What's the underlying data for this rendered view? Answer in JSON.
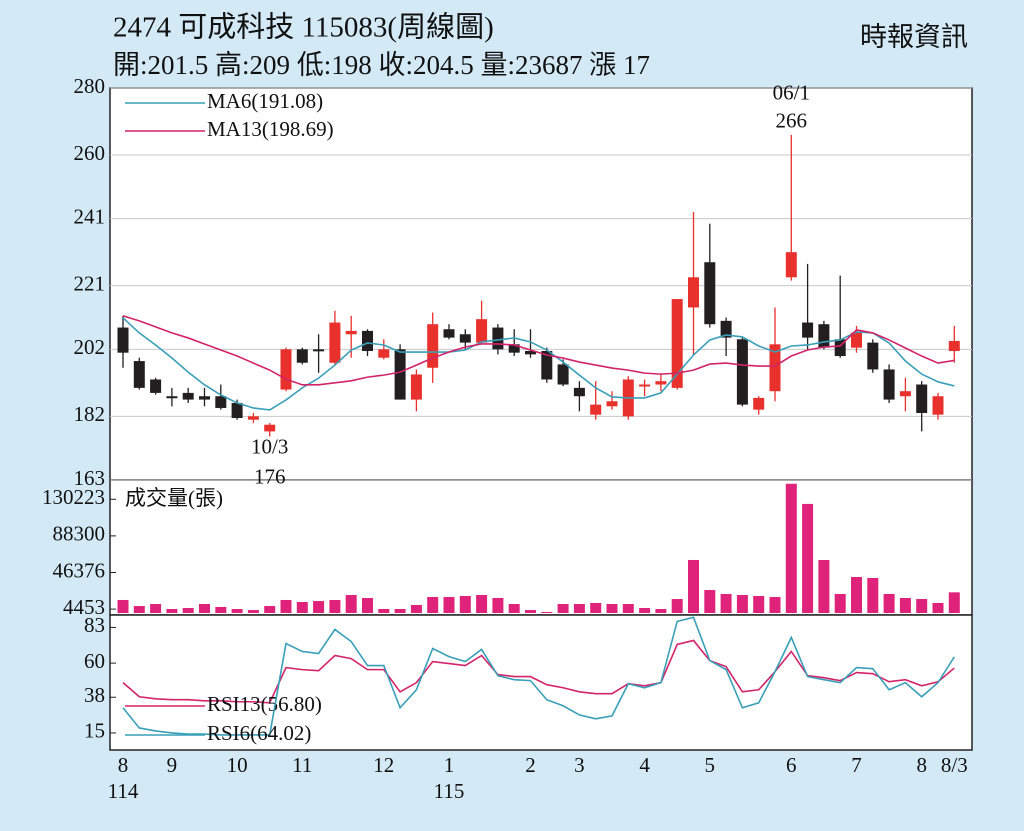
{
  "chart_data": [
    {
      "type": "candlestick",
      "title": "2474  可成科技 115083(周線圖)",
      "subtitle": "開:201.5 高:209 低:198 收:204.5 量:23687 漲 17",
      "source": "時報資訊",
      "categories": [
        "8",
        null,
        null,
        "9",
        null,
        null,
        null,
        "10",
        null,
        null,
        null,
        "11",
        null,
        null,
        null,
        null,
        "12",
        null,
        null,
        null,
        "1",
        null,
        null,
        null,
        null,
        "2",
        null,
        null,
        "3",
        null,
        null,
        null,
        "4",
        null,
        null,
        null,
        "5",
        null,
        null,
        null,
        null,
        "6",
        null,
        null,
        null,
        "7",
        null,
        null,
        null,
        "8",
        null,
        "8/3"
      ],
      "year_labels": [
        {
          "category": 0,
          "label": "114"
        },
        {
          "category": 20,
          "label": "115"
        }
      ],
      "open": [
        208.5,
        198.5,
        193,
        188,
        189,
        188,
        188,
        186,
        181,
        177.5,
        190,
        202,
        202,
        198,
        206.5,
        207.5,
        199.5,
        202,
        187,
        196.5,
        208,
        206.5,
        204,
        208.5,
        203.5,
        201.5,
        201.5,
        197.5,
        190.5,
        182.5,
        185,
        182,
        191,
        191.5,
        190.5,
        214.5,
        228,
        210.5,
        205,
        184,
        189.5,
        223.5,
        210,
        209.5,
        205,
        202.5,
        204,
        196,
        188,
        191.5,
        182.5,
        201.5
      ],
      "high": [
        212,
        199.5,
        193.5,
        190.5,
        190.5,
        190.5,
        191.5,
        187,
        183,
        180,
        202.5,
        202.5,
        206.5,
        213.5,
        212,
        208,
        205,
        203.5,
        196,
        213,
        209.5,
        208,
        216.5,
        209.5,
        208,
        208,
        202.5,
        199,
        192.5,
        192.5,
        189.5,
        194,
        193,
        194.5,
        217,
        243,
        239.5,
        211.5,
        205.5,
        188,
        214.5,
        266,
        227.5,
        210.5,
        224,
        209,
        205,
        197.5,
        193.5,
        192.5,
        189,
        209
      ],
      "low": [
        196.5,
        190,
        188.5,
        185,
        186,
        185,
        184,
        181,
        180,
        176,
        189.5,
        197.5,
        195,
        197.5,
        199.5,
        200,
        199,
        187,
        183.5,
        192,
        205,
        202,
        203.5,
        200.5,
        200,
        199.5,
        192,
        191,
        183.5,
        181,
        184,
        181,
        188,
        189.5,
        190,
        200.5,
        208.5,
        200,
        185,
        182.5,
        186.5,
        222.5,
        202,
        202,
        199.5,
        201,
        195,
        186,
        183.5,
        177.5,
        181,
        198
      ],
      "close": [
        201,
        190.5,
        189,
        187.5,
        187,
        187,
        184.5,
        181.5,
        182,
        179.5,
        202,
        198,
        201.5,
        210,
        207.5,
        201.5,
        202,
        187,
        194.5,
        209.5,
        205.5,
        204,
        211,
        202,
        201,
        200.5,
        193,
        191.5,
        188,
        185.5,
        186.5,
        193,
        191.5,
        192.5,
        217,
        223.5,
        209.5,
        205.5,
        185.5,
        187.5,
        203.5,
        231,
        205.5,
        202.5,
        200,
        207,
        196,
        187,
        189.5,
        183,
        188,
        204.5
      ],
      "up_color": "#e8302c",
      "down_color": "#231f20",
      "series": [
        {
          "name": "MA6(191.08)",
          "color": "#3a9fb8",
          "values": [
            211.4,
            206.9,
            203.3,
            199.4,
            195.2,
            191.4,
            188.4,
            186,
            184.5,
            183.9,
            186.9,
            190.5,
            193.4,
            197.3,
            201.8,
            203.9,
            203.3,
            201.2,
            201.2,
            201.2,
            201.2,
            201.8,
            204.2,
            204.8,
            205.4,
            204.2,
            201.8,
            198.2,
            194.3,
            190.5,
            187.8,
            187.5,
            187.5,
            189,
            194.6,
            200.3,
            204.8,
            206.3,
            205.7,
            203,
            201.2,
            203,
            203.3,
            204.2,
            204.8,
            207.2,
            206.9,
            203.9,
            198.5,
            194.6,
            192.3,
            191.08
          ]
        },
        {
          "name": "MA13(198.69)",
          "color": "#d3246a",
          "values": [
            212,
            210.5,
            208.7,
            206.9,
            205.4,
            203.6,
            201.8,
            200,
            197.9,
            195.8,
            193.1,
            191.4,
            191.4,
            192,
            192.6,
            193.7,
            194.3,
            195.2,
            197.3,
            199.4,
            201.2,
            202.7,
            203.6,
            203.6,
            203.3,
            201.8,
            200.3,
            199.4,
            198.2,
            197.3,
            196.4,
            195.8,
            194.9,
            194.6,
            194.9,
            195.8,
            197.6,
            197.9,
            197.3,
            197,
            197,
            200,
            201.8,
            202.7,
            203,
            207.8,
            206.9,
            204.8,
            202.4,
            200,
            197.9,
            198.69
          ]
        }
      ],
      "annotations": [
        {
          "category": 9,
          "label": "10/3",
          "value": 176,
          "position": "below"
        },
        {
          "category": 41,
          "label": "06/1",
          "value": 266,
          "position": "above"
        }
      ],
      "ylim": [
        163,
        280
      ],
      "yticks": [
        163,
        182,
        202,
        221,
        241,
        260,
        280
      ],
      "grid": true
    },
    {
      "type": "bar",
      "series": [
        {
          "name": "成交量(張)",
          "color": "#e0237a",
          "values": [
            14900,
            8000,
            10300,
            4600,
            5700,
            10300,
            6900,
            4600,
            3400,
            8000,
            14900,
            12600,
            13700,
            14900,
            20600,
            17200,
            4600,
            4600,
            9200,
            18300,
            18300,
            19500,
            20600,
            17200,
            10300,
            3400,
            1200,
            10300,
            10300,
            11500,
            10300,
            10300,
            5700,
            4600,
            16000,
            60700,
            26300,
            21800,
            20600,
            19500,
            18300,
            148000,
            124900,
            60700,
            21800,
            41200,
            40100,
            21800,
            17200,
            16000,
            11500,
            23687
          ]
        }
      ],
      "ylim": [
        0,
        150000
      ],
      "yticks": [
        4453,
        46376,
        88300,
        130223
      ],
      "grid": false
    },
    {
      "type": "line",
      "series": [
        {
          "name": "RSI13(56.80)",
          "color": "#d3246a",
          "values": [
            47.4,
            38.3,
            37,
            36.4,
            36.4,
            35.7,
            35.7,
            35.1,
            35.1,
            34.4,
            57.1,
            55.8,
            55.1,
            64.9,
            62.9,
            55.8,
            55.8,
            41.5,
            47.4,
            61,
            59.7,
            58.4,
            64.9,
            52.6,
            51.3,
            51.3,
            46.1,
            44.1,
            41.5,
            40.3,
            40.3,
            46.7,
            45.4,
            47.4,
            72,
            74.6,
            61.6,
            57.7,
            41.5,
            42.8,
            54.5,
            67.5,
            51.9,
            50.6,
            48.7,
            53.9,
            53.2,
            48,
            49.3,
            45.4,
            48,
            56.8
          ]
        },
        {
          "name": "RSI6(64.02)",
          "color": "#3a9fb8",
          "values": [
            31.2,
            18.2,
            16.3,
            15,
            14.3,
            14.3,
            13.7,
            13.7,
            13.7,
            13.7,
            72.6,
            67.5,
            66.2,
            81.7,
            73.9,
            58.4,
            58.4,
            31.2,
            42.8,
            69.4,
            64.2,
            61,
            68.8,
            51.9,
            49.3,
            48.7,
            36.4,
            32.5,
            26.6,
            24.1,
            26,
            46.7,
            44.1,
            47.4,
            86.9,
            89.5,
            61.6,
            55.8,
            31.2,
            34.4,
            54.5,
            76.5,
            51.3,
            49.3,
            47.4,
            57.1,
            56.4,
            42.8,
            47.4,
            38.3,
            47.4,
            64.02
          ]
        }
      ],
      "ylim": [
        4,
        91
      ],
      "yticks": [
        15,
        38,
        60,
        83
      ],
      "grid": false
    }
  ]
}
